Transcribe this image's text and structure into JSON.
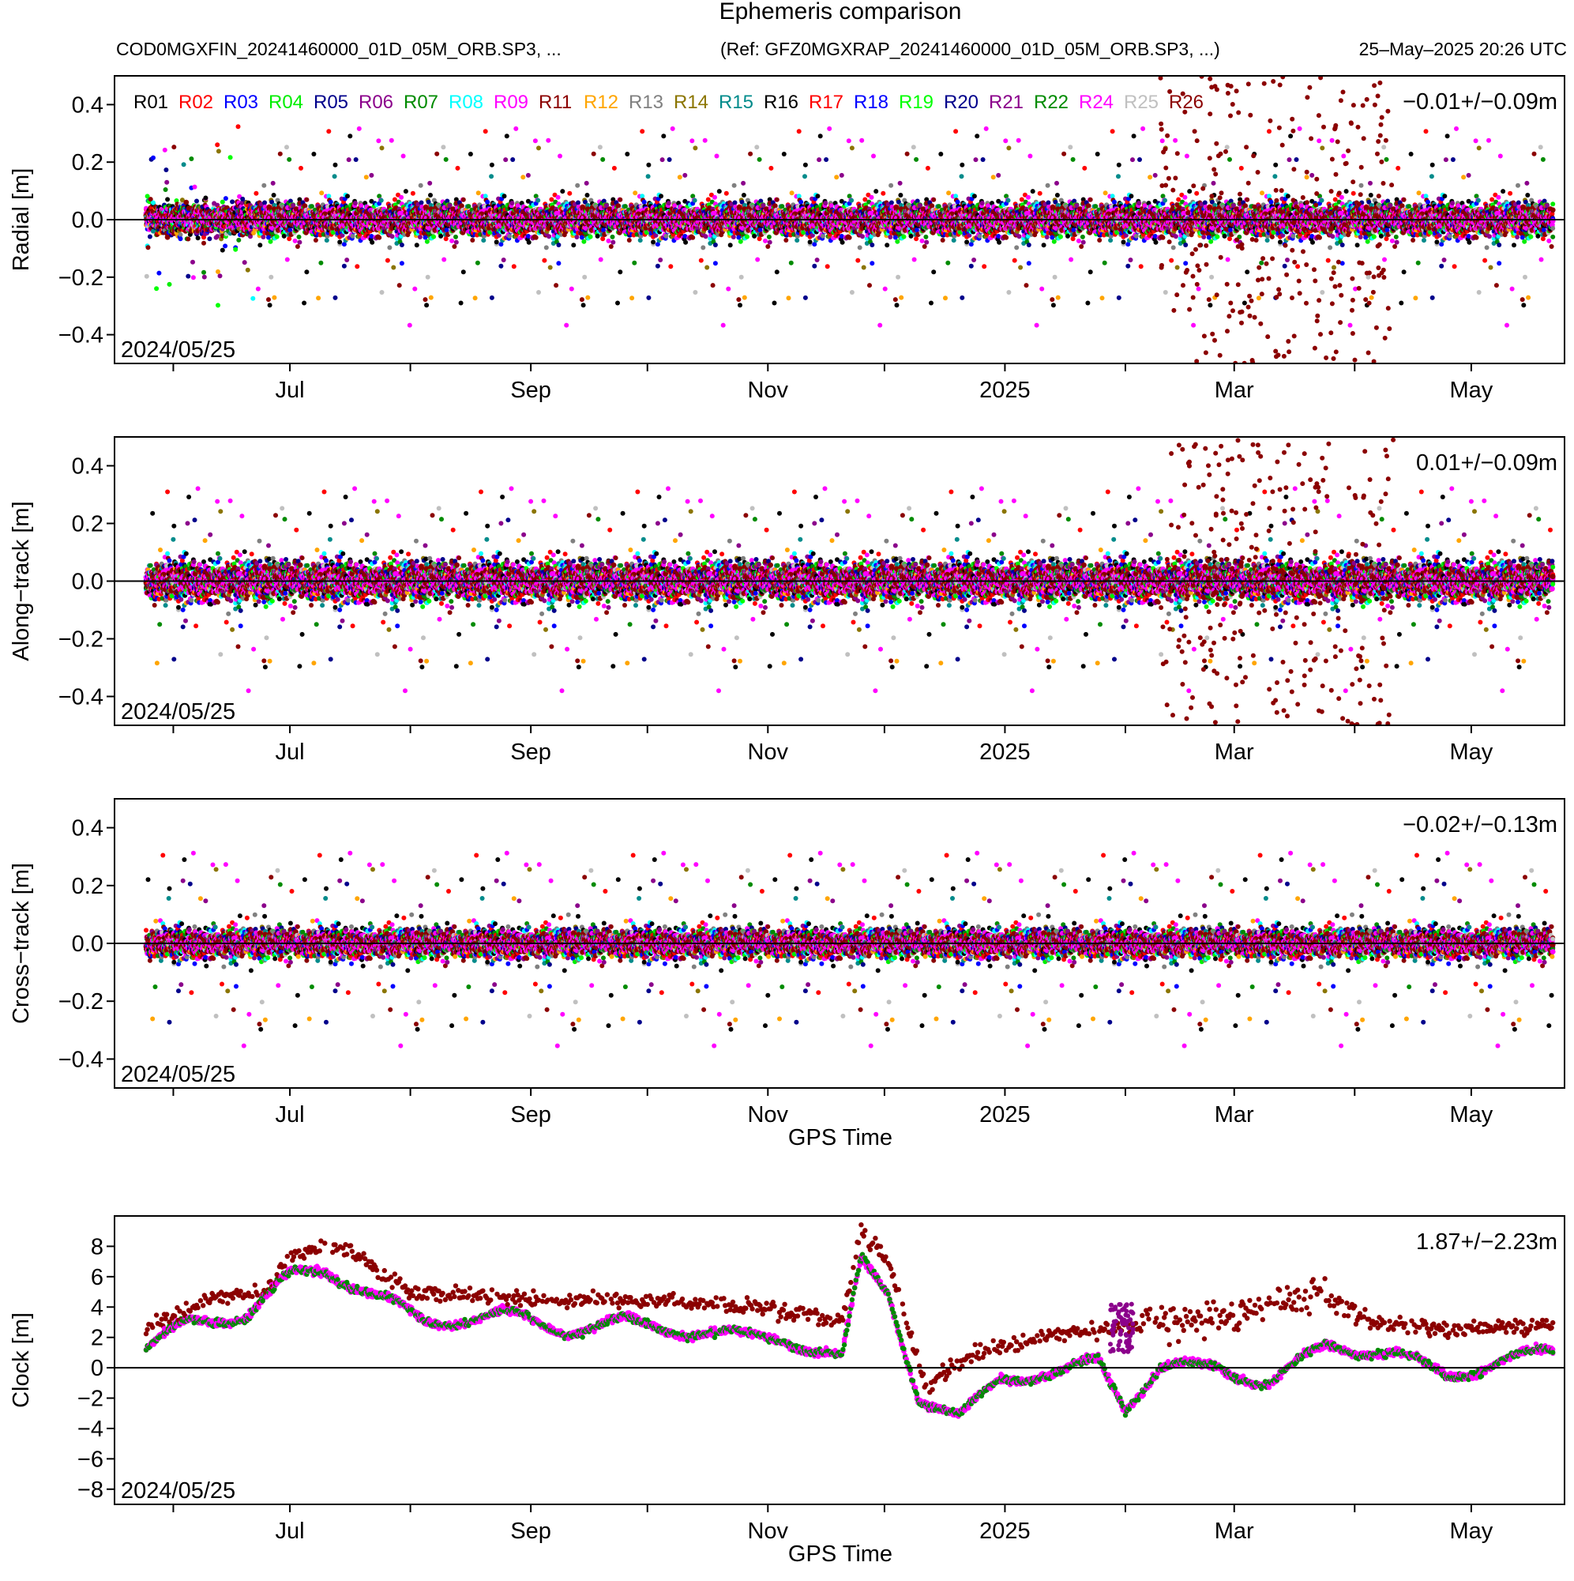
{
  "header": {
    "title": "Ephemeris comparison",
    "file_label": "COD0MGXFIN_20241460000_01D_05M_ORB.SP3, ...",
    "ref_label": "(Ref: GFZ0MGXRAP_20241460000_01D_05M_ORB.SP3, ...)",
    "timestamp": "25–May–2025 20:26 UTC"
  },
  "colors": {
    "R01": "#000000",
    "R02": "#ff0000",
    "R03": "#0000ff",
    "R04": "#00ee00",
    "R05": "#00008b",
    "R06": "#8b008b",
    "R07": "#008b00",
    "R08": "#00ffff",
    "R09": "#ff00ff",
    "R11": "#8b0000",
    "R12": "#ffa500",
    "R13": "#808080",
    "R14": "#8b7500",
    "R15": "#008b8b",
    "R16": "#000000",
    "R17": "#ff0000",
    "R18": "#0000ff",
    "R19": "#00ff00",
    "R20": "#00008b",
    "R21": "#8b008b",
    "R22": "#008b00",
    "R24": "#ff00ff",
    "R25": "#c0c0c0",
    "R26": "#8b0000"
  },
  "legend": [
    "R01",
    "R02",
    "R03",
    "R04",
    "R05",
    "R06",
    "R07",
    "R08",
    "R09",
    "R11",
    "R12",
    "R13",
    "R14",
    "R15",
    "R16",
    "R17",
    "R18",
    "R19",
    "R20",
    "R21",
    "R22",
    "R24",
    "R25",
    "R26"
  ],
  "chart_data": [
    {
      "type": "scatter",
      "ylabel": "Radial [m]",
      "ylim": [
        -0.5,
        0.5
      ],
      "yticks": [
        -0.4,
        -0.2,
        0.0,
        0.2,
        0.4
      ],
      "stat": "−0.01+/−0.09m",
      "date_label": "2024/05/25",
      "xlabel": "",
      "x_range": [
        "2024-05-25",
        "2025-05-25"
      ],
      "x_tick_labels": [
        "Jul",
        "Sep",
        "Nov",
        "2025",
        "Mar",
        "May"
      ],
      "typical_spread": 0.06,
      "series_centerline": 0.0
    },
    {
      "type": "scatter",
      "ylabel": "Along−track [m]",
      "ylim": [
        -0.5,
        0.5
      ],
      "yticks": [
        -0.4,
        -0.2,
        0.0,
        0.2,
        0.4
      ],
      "stat": "0.01+/−0.09m",
      "date_label": "2024/05/25",
      "xlabel": "",
      "x_range": [
        "2024-05-25",
        "2025-05-25"
      ],
      "x_tick_labels": [
        "Jul",
        "Sep",
        "Nov",
        "2025",
        "Mar",
        "May"
      ],
      "typical_spread": 0.07,
      "series_centerline": 0.0
    },
    {
      "type": "scatter",
      "ylabel": "Cross−track [m]",
      "ylim": [
        -0.5,
        0.5
      ],
      "yticks": [
        -0.4,
        -0.2,
        0.0,
        0.2,
        0.4
      ],
      "stat": "−0.02+/−0.13m",
      "date_label": "2024/05/25",
      "xlabel": "GPS Time",
      "x_range": [
        "2024-05-25",
        "2025-05-25"
      ],
      "x_tick_labels": [
        "Jul",
        "Sep",
        "Nov",
        "2025",
        "Mar",
        "May"
      ],
      "typical_spread": 0.05,
      "series_centerline": 0.0
    },
    {
      "type": "scatter",
      "ylabel": "Clock [m]",
      "ylim": [
        -9,
        10
      ],
      "yticks": [
        -8,
        -6,
        -4,
        -2,
        0,
        2,
        4,
        6,
        8
      ],
      "stat": "1.87+/−2.23m",
      "date_label": "2024/05/25",
      "xlabel": "GPS Time",
      "x_range": [
        "2024-05-25",
        "2025-05-25"
      ],
      "x_tick_labels": [
        "Jul",
        "Sep",
        "Nov",
        "2025",
        "Mar",
        "May"
      ],
      "clock_main_trend": [
        [
          "2024-05-25",
          1.2
        ],
        [
          "2024-06-05",
          3.0
        ],
        [
          "2024-06-20",
          3.5
        ],
        [
          "2024-07-01",
          6.0
        ],
        [
          "2024-07-10",
          6.5
        ],
        [
          "2024-07-25",
          4.5
        ],
        [
          "2024-08-05",
          3.0
        ],
        [
          "2024-08-25",
          3.5
        ],
        [
          "2024-09-10",
          2.5
        ],
        [
          "2024-09-25",
          3.0
        ],
        [
          "2024-10-10",
          2.5
        ],
        [
          "2024-10-25",
          2.0
        ],
        [
          "2024-11-05",
          2.0
        ],
        [
          "2024-11-20",
          0.5
        ],
        [
          "2024-11-25",
          7.0
        ],
        [
          "2024-12-02",
          5.0
        ],
        [
          "2024-12-10",
          -2.0
        ],
        [
          "2024-12-20",
          -3.5
        ],
        [
          "2024-12-31",
          -0.5
        ],
        [
          "2025-01-15",
          -0.5
        ],
        [
          "2025-01-25",
          0.5
        ],
        [
          "2025-02-01",
          -2.5
        ],
        [
          "2025-02-10",
          0.0
        ],
        [
          "2025-02-25",
          0.0
        ],
        [
          "2025-03-10",
          -1.0
        ],
        [
          "2025-03-25",
          1.5
        ],
        [
          "2025-04-10",
          1.0
        ],
        [
          "2025-04-25",
          -0.5
        ],
        [
          "2025-05-10",
          0.5
        ],
        [
          "2025-05-22",
          1.0
        ]
      ],
      "clock_r26_trend": [
        [
          "2024-05-25",
          2.5
        ],
        [
          "2024-06-10",
          4.5
        ],
        [
          "2024-06-25",
          5.0
        ],
        [
          "2024-07-01",
          7.5
        ],
        [
          "2024-07-15",
          8.0
        ],
        [
          "2024-08-01",
          5.0
        ],
        [
          "2024-09-01",
          4.5
        ],
        [
          "2024-10-01",
          4.5
        ],
        [
          "2024-11-01",
          4.0
        ],
        [
          "2024-11-20",
          3.0
        ],
        [
          "2024-11-25",
          9.0
        ],
        [
          "2024-12-02",
          7.0
        ],
        [
          "2024-12-12",
          -1.5
        ],
        [
          "2024-12-20",
          0.5
        ],
        [
          "2025-01-10",
          2.0
        ],
        [
          "2025-01-25",
          2.5
        ],
        [
          "2025-02-10",
          3.0
        ],
        [
          "2025-03-01",
          3.5
        ],
        [
          "2025-03-25",
          5.0
        ],
        [
          "2025-04-05",
          3.0
        ],
        [
          "2025-04-25",
          2.5
        ],
        [
          "2025-05-22",
          2.8
        ]
      ]
    }
  ]
}
